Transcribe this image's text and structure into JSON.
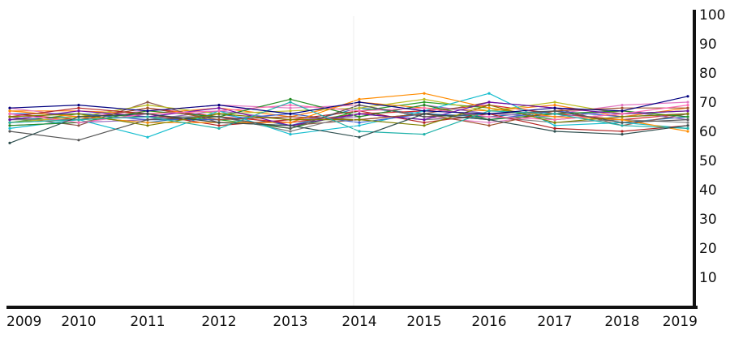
{
  "chart_data": {
    "type": "line",
    "title": "",
    "xlabel": "",
    "ylabel": "",
    "x": [
      "2009",
      "2010",
      "2011",
      "2012",
      "2013",
      "2014",
      "2015",
      "2016",
      "2017",
      "2018",
      "2019"
    ],
    "y_ticks": [
      "10",
      "20",
      "30",
      "40",
      "50",
      "60",
      "70",
      "80",
      "90",
      "100"
    ],
    "ylim": [
      0,
      100
    ],
    "y_axis_side": "right",
    "grid": false,
    "legend": "none",
    "series": [
      {
        "color": "#1f77b4",
        "values": [
          64,
          65,
          63,
          66,
          62,
          68,
          66,
          65,
          67,
          63,
          65
        ]
      },
      {
        "color": "#d62728",
        "values": [
          66,
          64,
          68,
          65,
          63,
          66,
          67,
          69,
          66,
          64,
          66
        ]
      },
      {
        "color": "#2ca02c",
        "values": [
          63,
          66,
          65,
          64,
          61,
          67,
          70,
          68,
          64,
          66,
          67
        ]
      },
      {
        "color": "#ff7f0e",
        "values": [
          67,
          67,
          66,
          68,
          65,
          70,
          68,
          67,
          69,
          65,
          68
        ]
      },
      {
        "color": "#9467bd",
        "values": [
          62,
          63,
          64,
          67,
          64,
          65,
          69,
          66,
          65,
          67,
          64
        ]
      },
      {
        "color": "#8c564b",
        "values": [
          65,
          62,
          70,
          63,
          62,
          64,
          66,
          70,
          68,
          62,
          66
        ]
      },
      {
        "color": "#e377c2",
        "values": [
          68,
          65,
          67,
          69,
          68,
          69,
          65,
          63,
          66,
          69,
          70
        ]
      },
      {
        "color": "#7f7f7f",
        "values": [
          64,
          64,
          65,
          65,
          60,
          66,
          64,
          65,
          63,
          64,
          63
        ]
      },
      {
        "color": "#bcbd22",
        "values": [
          63,
          65,
          69,
          66,
          67,
          68,
          71,
          67,
          70,
          66,
          67
        ]
      },
      {
        "color": "#17becf",
        "values": [
          61,
          64,
          58,
          67,
          59,
          62,
          67,
          73,
          62,
          63,
          61
        ]
      },
      {
        "color": "#3a5fcd",
        "values": [
          66,
          66,
          64,
          64,
          66,
          63,
          66,
          64,
          67,
          65,
          66
        ]
      },
      {
        "color": "#b22222",
        "values": [
          65,
          68,
          66,
          62,
          64,
          67,
          63,
          66,
          61,
          60,
          62
        ]
      },
      {
        "color": "#228b22",
        "values": [
          62,
          63,
          67,
          65,
          71,
          65,
          69,
          64,
          66,
          67,
          65
        ]
      },
      {
        "color": "#ff8c00",
        "values": [
          67,
          65,
          63,
          63,
          63,
          71,
          73,
          68,
          65,
          64,
          60
        ]
      },
      {
        "color": "#6a0dad",
        "values": [
          64,
          67,
          65,
          68,
          62,
          66,
          64,
          70,
          68,
          66,
          67
        ]
      },
      {
        "color": "#a0522d",
        "values": [
          63,
          64,
          68,
          64,
          65,
          64,
          66,
          62,
          67,
          68,
          68
        ]
      },
      {
        "color": "#ff69b4",
        "values": [
          66,
          63,
          66,
          67,
          69,
          67,
          68,
          65,
          64,
          66,
          69
        ]
      },
      {
        "color": "#555555",
        "values": [
          60,
          57,
          64,
          65,
          61,
          69,
          65,
          66,
          67,
          63,
          64
        ]
      },
      {
        "color": "#808000",
        "values": [
          65,
          66,
          62,
          66,
          64,
          64,
          62,
          69,
          63,
          65,
          66
        ]
      },
      {
        "color": "#20b2aa",
        "values": [
          63,
          64,
          65,
          61,
          70,
          60,
          59,
          67,
          66,
          62,
          61
        ]
      },
      {
        "color": "#000080",
        "values": [
          68,
          69,
          67,
          69,
          66,
          70,
          67,
          66,
          68,
          67,
          72
        ]
      },
      {
        "color": "#2f4f4f",
        "values": [
          56,
          65,
          66,
          63,
          62,
          58,
          66,
          64,
          60,
          59,
          62
        ]
      }
    ]
  }
}
